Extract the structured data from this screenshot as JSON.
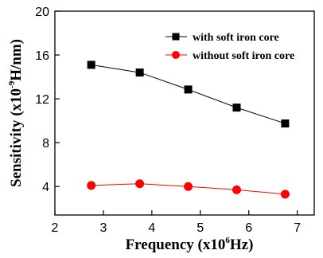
{
  "chart_data": {
    "type": "line",
    "x": [
      2.75,
      3.75,
      4.75,
      5.75,
      6.75
    ],
    "series": [
      {
        "name": "with soft iron core",
        "values": [
          15.1,
          14.4,
          12.85,
          11.2,
          9.75
        ],
        "color": "#000000",
        "line_color": "#000000",
        "marker": "square"
      },
      {
        "name": "without soft iron core",
        "values": [
          4.1,
          4.25,
          4.0,
          3.7,
          3.3
        ],
        "color": "#ff0000",
        "line_color": "#ff0000",
        "marker": "circle"
      }
    ],
    "xlim": [
      2,
      7.35
    ],
    "ylim": [
      1.4,
      20
    ],
    "xticks": [
      2,
      3,
      4,
      5,
      6,
      7
    ],
    "yticks": [
      4,
      8,
      12,
      16,
      20
    ],
    "xlabel": {
      "main": "Frequency (x10",
      "sup": "6",
      "rest": "Hz)"
    },
    "ylabel": {
      "main": "Sensitivity (x10",
      "sup": "-9",
      "rest": "H/nm)"
    },
    "legend_position": "top-right",
    "grid": false
  }
}
